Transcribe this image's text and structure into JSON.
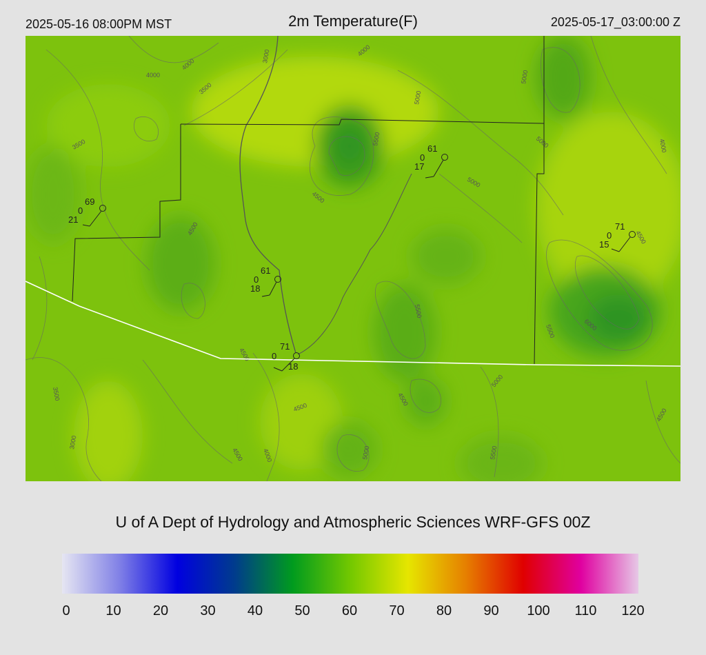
{
  "header": {
    "local_time": "2025-05-16 08:00PM MST",
    "title": "2m Temperature(F)",
    "utc_time": "2025-05-17_03:00:00 Z"
  },
  "credit": "U of A Dept of Hydrology and Atmospheric Sciences WRF-GFS 00Z",
  "colorbar": {
    "ticks": [
      "0",
      "10",
      "20",
      "30",
      "40",
      "50",
      "60",
      "70",
      "80",
      "90",
      "100",
      "110",
      "120"
    ],
    "colors": [
      "#e6e6f2",
      "#8080e6",
      "#0000e0",
      "#003c8c",
      "#009b1e",
      "#73c800",
      "#e6e600",
      "#e68000",
      "#e00000",
      "#e000a0",
      "#e6c8e6"
    ]
  },
  "contours": [
    "3000",
    "3500",
    "4000",
    "4500",
    "5000",
    "5500",
    "6000"
  ],
  "stations": [
    {
      "temp": "69",
      "precip": "0",
      "dew": "21"
    },
    {
      "temp": "61",
      "precip": "0",
      "dew": "17"
    },
    {
      "temp": "61",
      "precip": "0",
      "dew": "18"
    },
    {
      "temp": "71",
      "precip": "0",
      "dew": "18"
    },
    {
      "temp": "71",
      "precip": "0",
      "dew": "15"
    }
  ]
}
